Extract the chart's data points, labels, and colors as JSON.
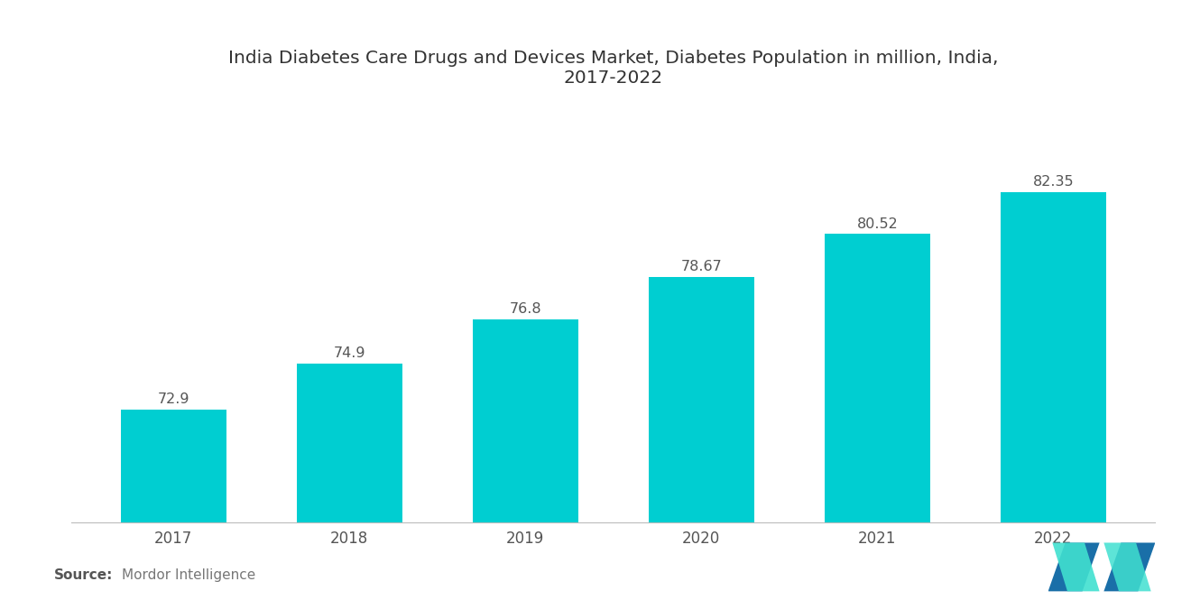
{
  "title": "India Diabetes Care Drugs and Devices Market, Diabetes Population in million, India,\n2017-2022",
  "categories": [
    "2017",
    "2018",
    "2019",
    "2020",
    "2021",
    "2022"
  ],
  "values": [
    72.9,
    74.9,
    76.8,
    78.67,
    80.52,
    82.35
  ],
  "bar_color": "#00CED1",
  "background_color": "#ffffff",
  "ylim_min": 68,
  "ylim_max": 86,
  "source_bold": "Source:",
  "source_text": "Mordor Intelligence",
  "title_fontsize": 14.5,
  "label_fontsize": 11.5,
  "tick_fontsize": 12,
  "source_fontsize": 11,
  "bar_width": 0.6
}
